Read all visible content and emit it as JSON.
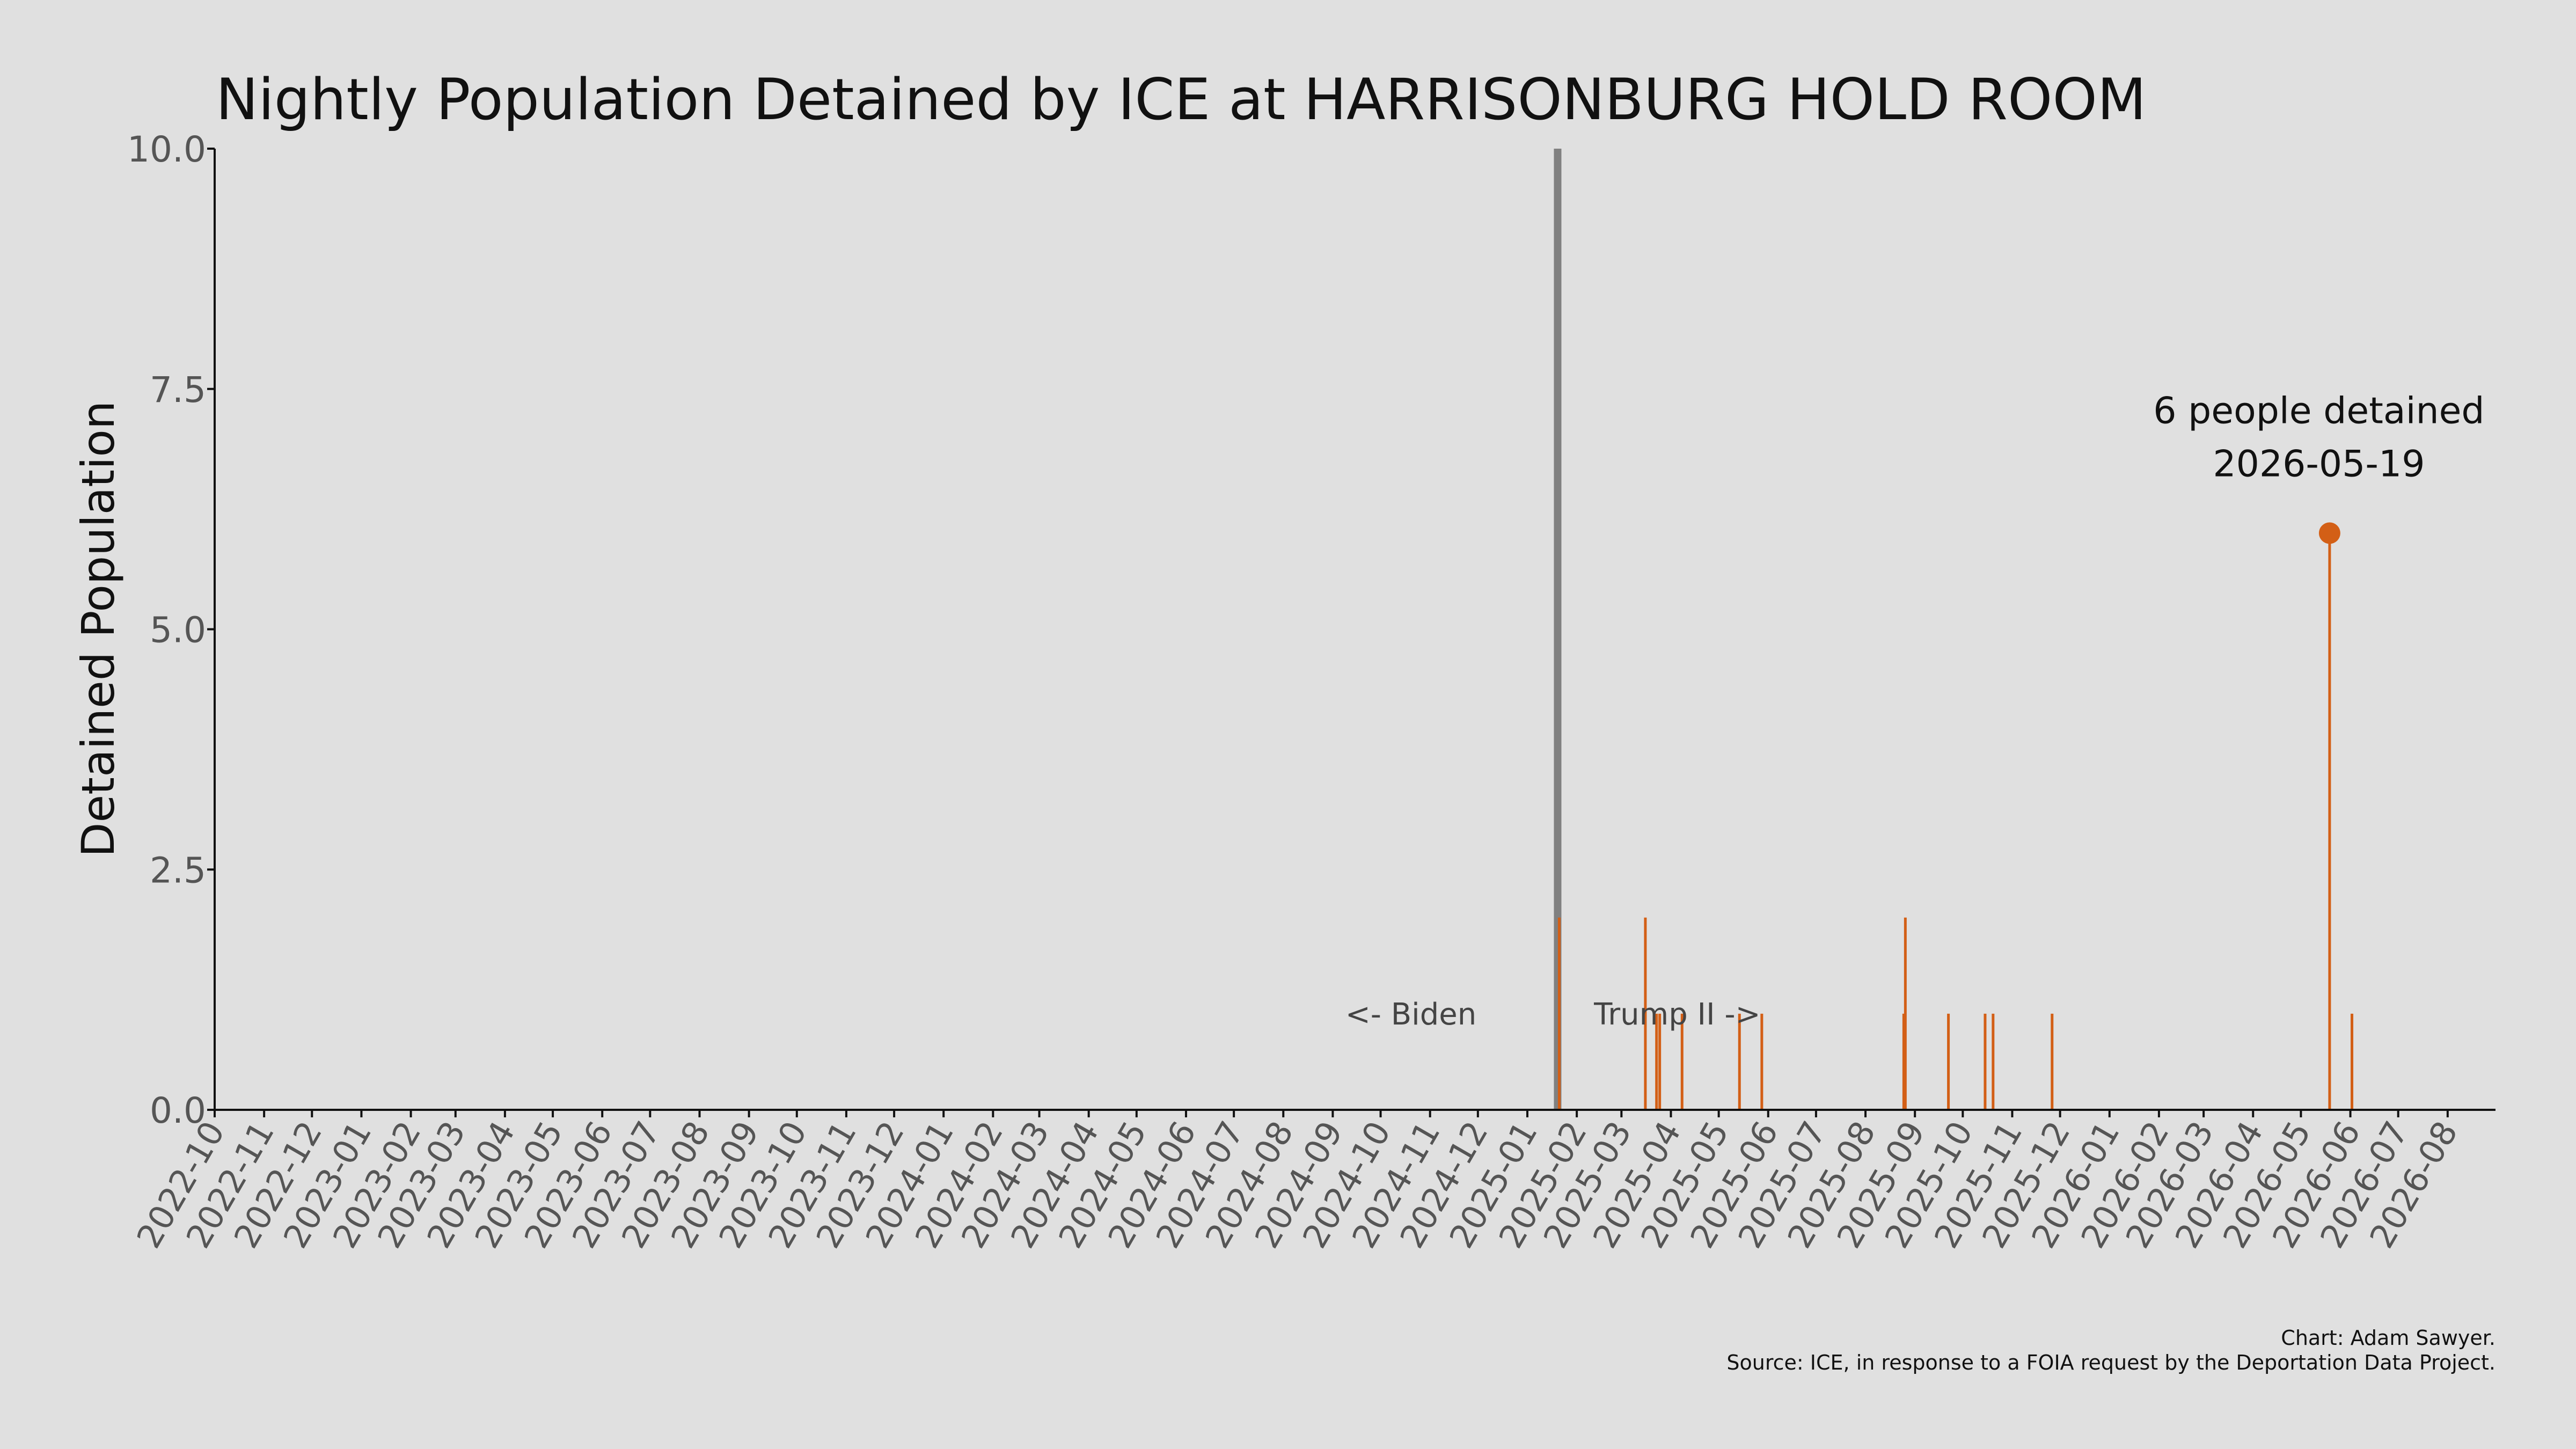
{
  "chart_data": {
    "type": "bar",
    "title": "Nightly Population Detained by ICE at HARRISONBURG HOLD ROOM",
    "xlabel": "",
    "ylabel": "Detained Population",
    "ylim": [
      0,
      10
    ],
    "yticks": [
      "0.0",
      "2.5",
      "5.0",
      "7.5",
      "10.0"
    ],
    "xlim": [
      "2022-10-01",
      "2026-08-31"
    ],
    "xticks": [
      "2022-10",
      "2022-11",
      "2022-12",
      "2023-01",
      "2023-02",
      "2023-03",
      "2023-04",
      "2023-05",
      "2023-06",
      "2023-07",
      "2023-08",
      "2023-09",
      "2023-10",
      "2023-11",
      "2023-12",
      "2024-01",
      "2024-02",
      "2024-03",
      "2024-04",
      "2024-05",
      "2024-06",
      "2024-07",
      "2024-08",
      "2024-09",
      "2024-10",
      "2024-11",
      "2024-12",
      "2025-01",
      "2025-02",
      "2025-03",
      "2025-04",
      "2025-05",
      "2025-06",
      "2025-07",
      "2025-08",
      "2025-09",
      "2025-10",
      "2025-11",
      "2025-12",
      "2026-01",
      "2026-02",
      "2026-03",
      "2026-04",
      "2026-05",
      "2026-06",
      "2026-07",
      "2026-08"
    ],
    "grid": false,
    "series": [
      {
        "color": "#d35f16",
        "points": [
          {
            "x": "2025-01-21",
            "y": 2
          },
          {
            "x": "2025-03-16",
            "y": 2
          },
          {
            "x": "2025-03-23",
            "y": 1
          },
          {
            "x": "2025-03-25",
            "y": 1
          },
          {
            "x": "2025-04-08",
            "y": 1
          },
          {
            "x": "2025-05-14",
            "y": 1
          },
          {
            "x": "2025-05-28",
            "y": 1
          },
          {
            "x": "2025-08-25",
            "y": 1
          },
          {
            "x": "2025-08-26",
            "y": 2
          },
          {
            "x": "2025-09-22",
            "y": 1
          },
          {
            "x": "2025-10-15",
            "y": 1
          },
          {
            "x": "2025-10-20",
            "y": 1
          },
          {
            "x": "2025-11-26",
            "y": 1
          },
          {
            "x": "2026-05-19",
            "y": 6
          },
          {
            "x": "2026-06-02",
            "y": 1
          }
        ]
      }
    ],
    "reference_line": {
      "x": "2025-01-20",
      "color": "#808080"
    },
    "annotations": [
      {
        "text": "<- Biden",
        "x": "2024-10-20",
        "y": 1
      },
      {
        "text": "Trump II ->",
        "x": "2025-04-05",
        "y": 1
      }
    ],
    "highlight": {
      "x": "2026-05-19",
      "y": 6,
      "line1": "6 people detained",
      "line2": "2026-05-19",
      "color": "#d35f16"
    },
    "credit": "Chart: Adam Sawyer.",
    "source": "Source: ICE, in response to a FOIA request by the Deportation Data Project."
  }
}
